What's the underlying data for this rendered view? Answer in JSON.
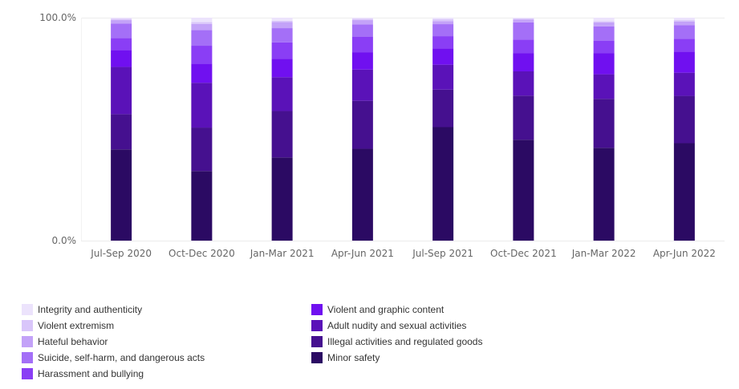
{
  "chart_data": {
    "type": "bar",
    "stacked": true,
    "y_tick_labels": [
      "100.0%",
      "0.0%"
    ],
    "ylim": [
      0,
      100
    ],
    "categories": [
      "Jul-Sep 2020",
      "Oct-Dec 2020",
      "Jan-Mar 2021",
      "Apr-Jun 2021",
      "Jul-Sep 2021",
      "Oct-Dec 2021",
      "Jan-Mar 2022",
      "Apr-Jun 2022"
    ],
    "series": [
      {
        "name": "Minor safety",
        "color": "#2b0a63",
        "values": [
          40.9,
          31.2,
          37.3,
          41.2,
          50.9,
          45.2,
          41.6,
          43.7
        ]
      },
      {
        "name": "Illegal activities and regulated goods",
        "color": "#45108f",
        "values": [
          15.8,
          19.5,
          20.8,
          21.5,
          16.8,
          19.8,
          22.0,
          21.2
        ]
      },
      {
        "name": "Adult nudity and sexual activities",
        "color": "#5a12b8",
        "values": [
          21.2,
          20.1,
          15.2,
          14.0,
          11.2,
          10.9,
          11.0,
          10.4
        ]
      },
      {
        "name": "Violent and graphic content",
        "color": "#7010f0",
        "values": [
          7.6,
          8.6,
          8.2,
          7.8,
          7.3,
          8.1,
          9.4,
          9.5
        ]
      },
      {
        "name": "Harassment and bullying",
        "color": "#8a3ef5",
        "values": [
          5.3,
          8.0,
          7.4,
          7.0,
          5.5,
          6.2,
          5.7,
          5.7
        ]
      },
      {
        "name": "Suicide, self-harm, and dangerous acts",
        "color": "#a46ff7",
        "values": [
          6.6,
          7.0,
          6.4,
          5.5,
          5.4,
          7.7,
          6.4,
          6.1
        ]
      },
      {
        "name": "Hateful behavior",
        "color": "#c3a2f8",
        "values": [
          1.5,
          2.8,
          2.7,
          1.9,
          1.3,
          1.2,
          1.8,
          1.6
        ]
      },
      {
        "name": "Violent extremism",
        "color": "#d9c6fa",
        "values": [
          0.6,
          0.8,
          0.6,
          0.6,
          0.9,
          0.5,
          0.5,
          0.7
        ]
      },
      {
        "name": "Integrity and authenticity",
        "color": "#ece3fc",
        "values": [
          0.5,
          2.0,
          1.4,
          0.5,
          0.7,
          0.4,
          1.6,
          1.1
        ]
      }
    ],
    "legend_position": "bottom",
    "legend_columns": [
      [
        "Integrity and authenticity",
        "Violent extremism",
        "Hateful behavior",
        "Suicide, self-harm, and dangerous acts",
        "Harassment and bullying"
      ],
      [
        "Violent and graphic content",
        "Adult nudity and sexual activities",
        "Illegal activities and regulated goods",
        "Minor safety"
      ]
    ],
    "grid": true
  }
}
